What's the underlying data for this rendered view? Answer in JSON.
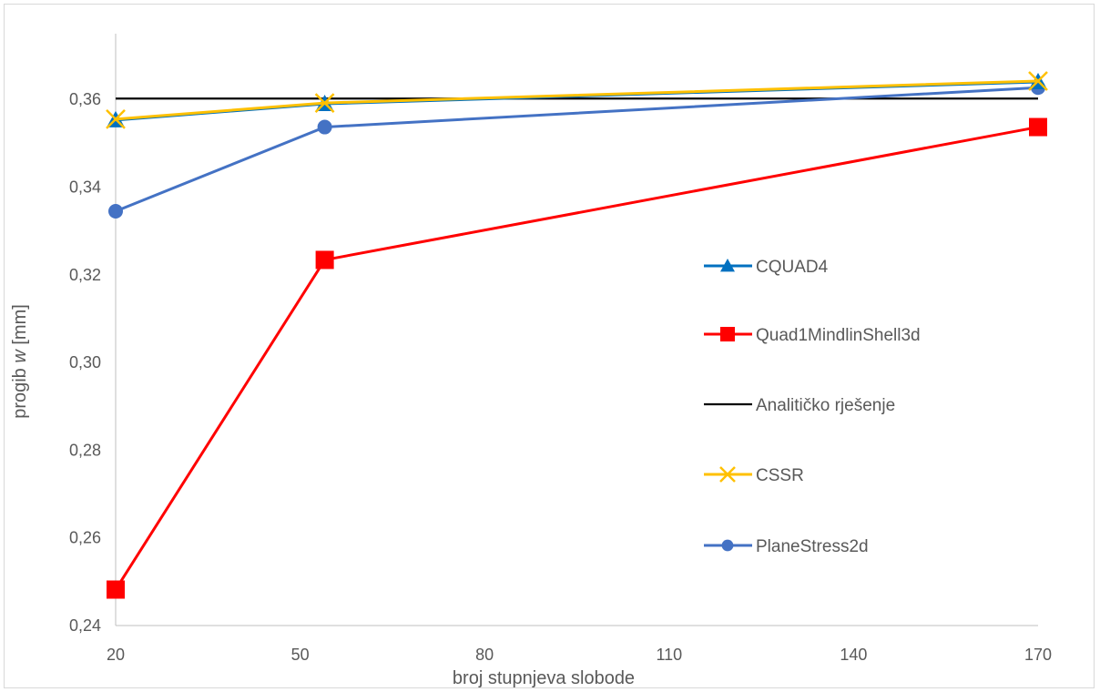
{
  "chart_data": {
    "type": "line",
    "title": "",
    "xlabel": "broj stupnjeva slobode",
    "ylabel_parts": [
      "progib ",
      "w",
      " [mm]"
    ],
    "xlim": [
      20,
      170
    ],
    "ylim": [
      0.24,
      0.375
    ],
    "x_ticks": [
      20,
      50,
      80,
      110,
      140,
      170
    ],
    "x_tick_labels": [
      "20",
      "50",
      "80",
      "110",
      "140",
      "170"
    ],
    "y_ticks": [
      0.24,
      0.26,
      0.28,
      0.3,
      0.32,
      0.34,
      0.36
    ],
    "y_tick_labels": [
      "0,24",
      "0,26",
      "0,28",
      "0,30",
      "0,32",
      "0,34",
      "0,36"
    ],
    "grid": false,
    "legend_position": "right",
    "series": [
      {
        "name": "CQUAD4",
        "color": "#0070C0",
        "marker": "triangle",
        "x": [
          20,
          54,
          170
        ],
        "y": [
          0.3553,
          0.359,
          0.364
        ]
      },
      {
        "name": "Quad1MindlinShell3d",
        "color": "#FF0000",
        "marker": "square",
        "x": [
          20,
          54,
          170
        ],
        "y": [
          0.2482,
          0.3234,
          0.3537
        ]
      },
      {
        "name": "Analitičko rješenje",
        "color": "#000000",
        "marker": "none",
        "x": [
          20,
          170
        ],
        "y": [
          0.3602,
          0.3602
        ]
      },
      {
        "name": "CSSR",
        "color": "#FFC000",
        "marker": "x",
        "x": [
          20,
          54,
          170
        ],
        "y": [
          0.3555,
          0.3592,
          0.3642
        ]
      },
      {
        "name": "PlaneStress2d",
        "color": "#4472C4",
        "marker": "circle",
        "x": [
          20,
          54,
          170
        ],
        "y": [
          0.3345,
          0.3537,
          0.3627
        ]
      }
    ]
  }
}
